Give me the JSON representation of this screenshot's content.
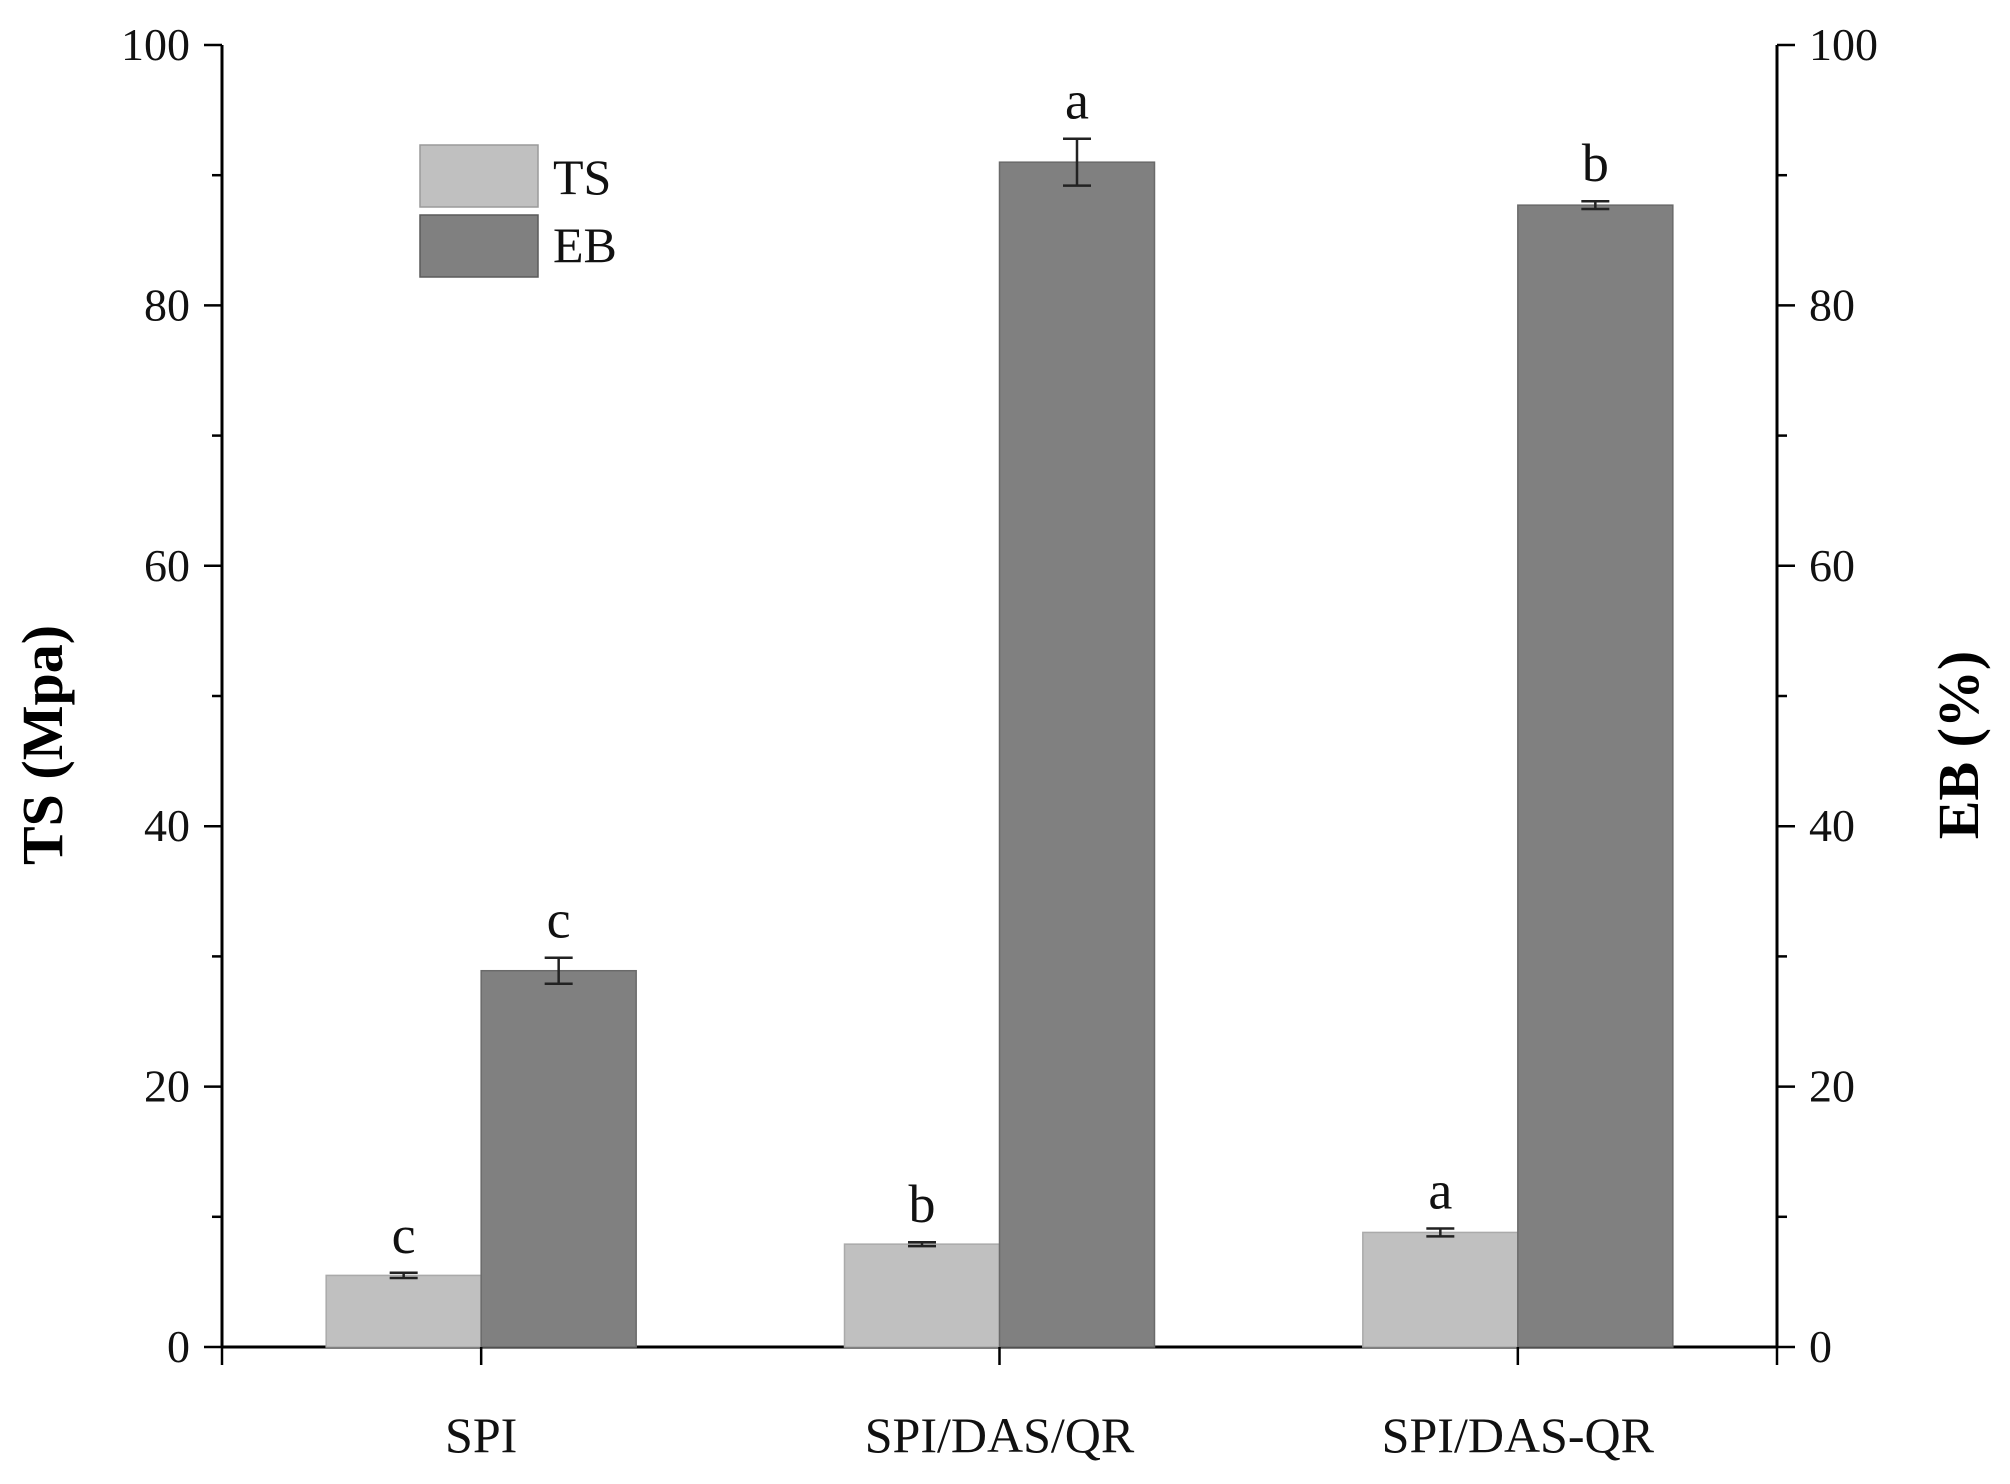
{
  "chart_data": {
    "type": "bar",
    "categories": [
      "SPI",
      "SPI/DAS/QR",
      "SPI/DAS-QR"
    ],
    "series": [
      {
        "name": "TS",
        "axis": "left",
        "color": "#c0c0c0",
        "values": [
          5.5,
          7.9,
          8.8
        ],
        "errors": [
          0.2,
          0.15,
          0.3
        ],
        "significance": [
          "c",
          "b",
          "a"
        ]
      },
      {
        "name": "EB",
        "axis": "right",
        "color": "#808080",
        "values": [
          28.9,
          91.0,
          87.7
        ],
        "errors": [
          1.0,
          1.8,
          0.3
        ],
        "significance": [
          "c",
          "a",
          "b"
        ]
      }
    ],
    "ylabel": "TS (Mpa)",
    "ylabel_right": "EB (%)",
    "ylim": [
      0,
      100
    ],
    "ylim_right": [
      0,
      100
    ],
    "yticks": [
      "0",
      "20",
      "40",
      "60",
      "80",
      "100"
    ],
    "yticks_right": [
      "0",
      "20",
      "40",
      "60",
      "80",
      "100"
    ],
    "grid": false,
    "legend_position": "top-left"
  }
}
